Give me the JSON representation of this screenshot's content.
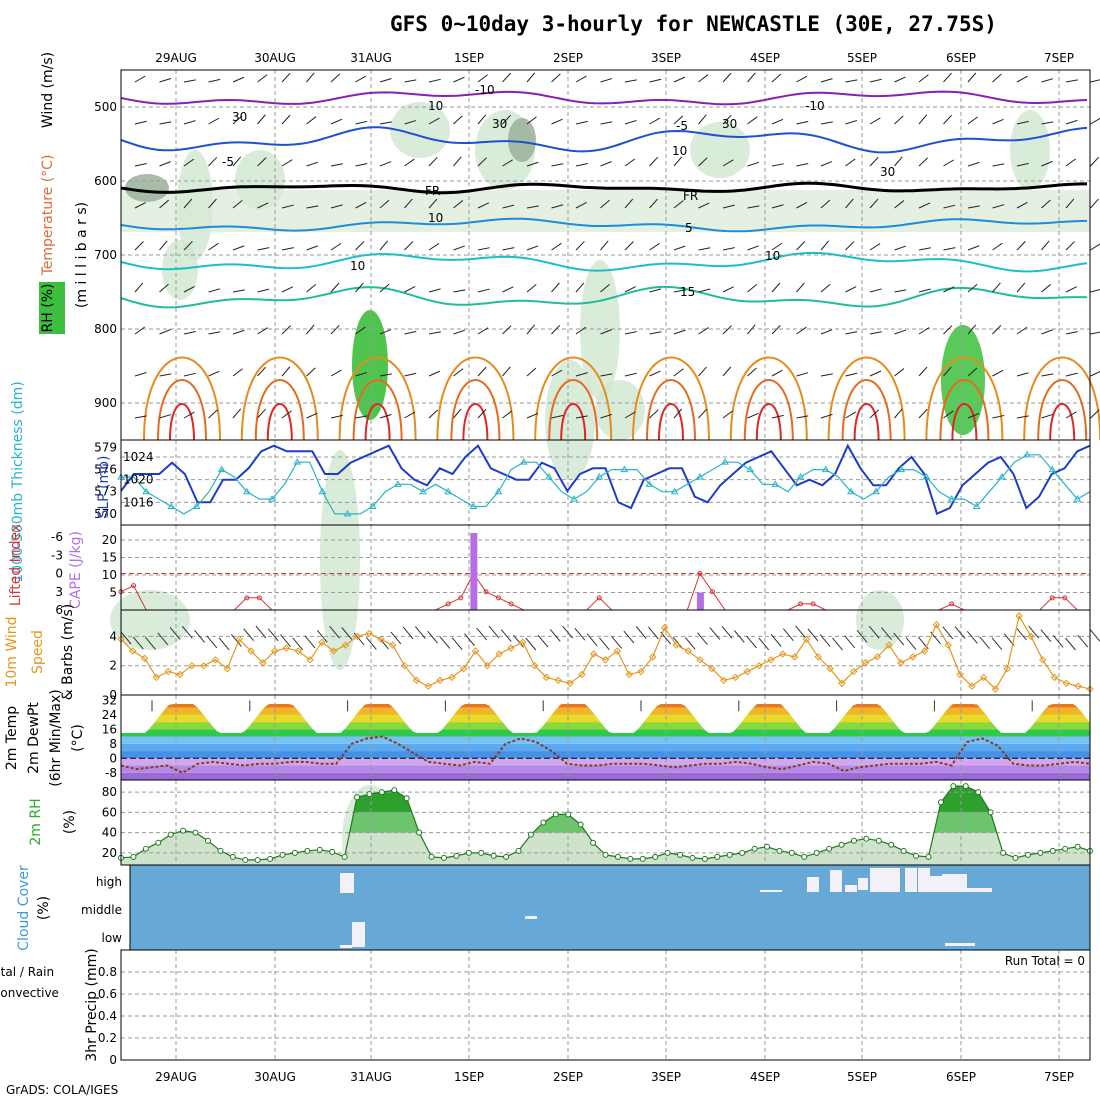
{
  "title": "GFS 0~10day 3-hourly for NEWCASTLE (30E, 27.75S)",
  "footer": "GrADS: COLA/IGES",
  "colors": {
    "rh_fill": "#3cbf3c",
    "contour_purple": "#8a1fb4",
    "contour_blue": "#1e50d2",
    "contour_cyan": "#1eaadc",
    "contour_teal": "#1ebe9b",
    "contour_orange": "#e68c1e",
    "slp": "#1e3cc8",
    "thickness": "#28b4c8",
    "lifted": "#dc3232",
    "cape": "#b46ee6",
    "wind": "#e6961e",
    "cloud_bg": "#66a8d6",
    "rhfill": "#2eaa2e"
  },
  "dates": [
    "29AUG",
    "30AUG",
    "31AUG",
    "1SEP",
    "2SEP",
    "3SEP",
    "4SEP",
    "5SEP",
    "6SEP",
    "7SEP"
  ],
  "chart_data": [
    {
      "type": "heatmap",
      "panel": "upper-air",
      "ylabel_parts": [
        "Wind (m/s)",
        "Temperature (°C)",
        "RH (%)",
        "(m i l l i b a r s)"
      ],
      "y_ticks": [
        500,
        600,
        700,
        800,
        900
      ],
      "ylim": [
        950,
        450
      ],
      "temperature_contour_labels": [
        "-10",
        "-10",
        "-5",
        "-5",
        "FR",
        "FR",
        "5",
        "10",
        "10",
        "15"
      ],
      "rh_contour_labels": [
        "10",
        "30",
        "30",
        "10",
        "30",
        "30",
        "10"
      ]
    },
    {
      "type": "line",
      "panel": "slp-thickness",
      "ylabel_left": "1000-500mb Thickness (dm)",
      "ylabel_right": "SLP (mb)",
      "left_ticks": [
        570,
        573,
        576,
        579
      ],
      "left_lim": [
        568.5,
        580
      ],
      "right_ticks": [
        1016,
        1020,
        1024
      ],
      "right_lim": [
        1012,
        1027
      ],
      "series": [
        {
          "name": "SLP",
          "values": [
            1018,
            1021,
            1021,
            1021,
            1023,
            1021,
            1016,
            1016,
            1020,
            1020,
            1022,
            1025,
            1026,
            1025,
            1025,
            1025,
            1021,
            1021,
            1023,
            1024,
            1025,
            1026,
            1022,
            1020,
            1019,
            1022,
            1021,
            1024,
            1026,
            1022,
            1021,
            1020,
            1020,
            1023,
            1022,
            1018,
            1021,
            1022,
            1022,
            1016,
            1015,
            1020,
            1021,
            1022,
            1022,
            1017,
            1016,
            1019,
            1021,
            1023,
            1024,
            1025,
            1022,
            1019,
            1020,
            1019,
            1021,
            1026,
            1022,
            1019,
            1019,
            1022,
            1024,
            1021,
            1014,
            1015,
            1019,
            1021,
            1023,
            1024,
            1021,
            1015,
            1017,
            1021,
            1022,
            1025,
            1026
          ]
        },
        {
          "name": "Thickness",
          "values": [
            575,
            575,
            573,
            572,
            571,
            570,
            571,
            573,
            576,
            575,
            573,
            572,
            572,
            574,
            577,
            577,
            573,
            570,
            570,
            570,
            571,
            573,
            574,
            574,
            573,
            574,
            573,
            572,
            571,
            571,
            573,
            576,
            577,
            577,
            575,
            573,
            572,
            573,
            575,
            576,
            576,
            576,
            574,
            573,
            573,
            574,
            575,
            576,
            577,
            577,
            576,
            574,
            574,
            573,
            575,
            576,
            576,
            575,
            573,
            572,
            573,
            575,
            576,
            576,
            575,
            573,
            572,
            572,
            571,
            573,
            575,
            577,
            578,
            578,
            576,
            574,
            572,
            573
          ]
        }
      ]
    },
    {
      "type": "bar",
      "panel": "cape-lifted",
      "ylabel_left": "Lifted Index",
      "ylabel_right": "CAPE (J/kg)",
      "left_ticks": [
        "-6",
        "-3",
        "0",
        "3",
        "6"
      ],
      "right_ticks": [
        5,
        10,
        15,
        20
      ],
      "lifted_index": [
        3,
        2,
        6,
        6,
        6,
        6,
        6,
        6,
        6,
        6,
        4,
        4,
        6,
        6,
        6,
        6,
        6,
        6,
        6,
        6,
        6,
        6,
        6,
        6,
        6,
        6,
        5,
        4,
        0,
        3,
        4,
        5,
        6,
        6,
        6,
        6,
        6,
        6,
        4,
        6,
        6,
        6,
        6,
        6,
        6,
        6,
        0,
        3,
        6,
        6,
        6,
        6,
        6,
        6,
        5,
        5,
        6,
        6,
        6,
        6,
        6,
        6,
        6,
        6,
        6,
        6,
        5,
        6,
        6,
        6,
        6,
        6,
        6,
        6,
        4,
        4,
        6,
        6
      ],
      "cape_bars": [
        {
          "x": 28,
          "value": 22
        },
        {
          "x": 46,
          "value": 5
        }
      ]
    },
    {
      "type": "line",
      "panel": "10m-wind",
      "ylabel": "10m Wind Speed & Barbs (m/s)",
      "y_ticks": [
        0,
        2,
        4
      ],
      "ylim": [
        0,
        5.8
      ],
      "series": [
        {
          "name": "Speed",
          "values": [
            3.8,
            3.0,
            2.5,
            1.2,
            1.6,
            1.4,
            2.0,
            2.0,
            2.4,
            1.8,
            3.8,
            3.0,
            2.2,
            3.0,
            3.2,
            3.0,
            2.4,
            3.6,
            3.0,
            3.4,
            4.0,
            4.2,
            3.8,
            3.4,
            2.0,
            1.0,
            0.6,
            1.0,
            1.2,
            1.8,
            3.0,
            2.0,
            2.8,
            3.2,
            3.6,
            2.0,
            1.2,
            1.0,
            0.8,
            1.4,
            2.8,
            2.4,
            3.0,
            1.4,
            1.6,
            2.6,
            4.6,
            3.4,
            3.0,
            2.4,
            1.8,
            1.0,
            1.2,
            1.6,
            2.0,
            2.4,
            2.8,
            2.6,
            3.8,
            2.6,
            1.8,
            0.8,
            1.6,
            2.2,
            2.6,
            3.4,
            2.2,
            2.6,
            3.0,
            4.8,
            3.4,
            1.4,
            0.6,
            1.2,
            0.4,
            1.8,
            5.4,
            4.0,
            2.4,
            1.2,
            0.8,
            0.6,
            0.4
          ]
        }
      ]
    },
    {
      "type": "area",
      "panel": "2m-temp",
      "ylabel": "2m Temp / 2m DewPt (6hr Min/Max) (°C)",
      "y_ticks": [
        -8,
        0,
        8,
        16,
        24,
        32
      ],
      "ylim": [
        -12,
        35
      ],
      "temp_min": 14,
      "temp_max": 30,
      "dewpoint": [
        -4,
        -6,
        -5,
        -4,
        -8,
        -3,
        -2,
        -3,
        -4,
        -3,
        -3,
        -2,
        -2,
        -3,
        -3,
        8,
        11,
        12,
        8,
        3,
        -2,
        -3,
        -4,
        -2,
        -3,
        8,
        11,
        9,
        4,
        -3,
        -4,
        -4,
        -3,
        -3,
        -3,
        -4,
        -5,
        -4,
        -3,
        -3,
        -2,
        -3,
        -5,
        -6,
        -4,
        -2,
        -3,
        -7,
        -5,
        -4,
        -3,
        -3,
        -3,
        -2,
        -4,
        9,
        11,
        7,
        -3,
        -4,
        -4,
        -3,
        -2,
        -3
      ]
    },
    {
      "type": "area",
      "panel": "2m-rh",
      "ylabel": "2m RH (%)",
      "y_ticks": [
        20,
        40,
        60,
        80
      ],
      "ylim": [
        8,
        92
      ],
      "series": [
        {
          "name": "2m RH",
          "values": [
            15,
            16,
            24,
            30,
            38,
            42,
            40,
            32,
            22,
            16,
            13,
            13,
            14,
            18,
            20,
            22,
            23,
            21,
            16,
            75,
            78,
            80,
            82,
            74,
            40,
            16,
            15,
            17,
            20,
            20,
            17,
            16,
            22,
            38,
            50,
            58,
            58,
            48,
            30,
            18,
            16,
            14,
            14,
            16,
            20,
            18,
            15,
            14,
            16,
            18,
            20,
            24,
            26,
            22,
            20,
            16,
            20,
            24,
            28,
            32,
            34,
            32,
            28,
            22,
            17,
            16,
            70,
            86,
            86,
            80,
            60,
            20,
            15,
            18,
            20,
            22,
            24,
            26,
            22
          ]
        }
      ]
    },
    {
      "type": "bar",
      "panel": "cloud-cover",
      "ylabel": "Cloud Cover (%)",
      "levels": [
        "high",
        "middle",
        "low"
      ],
      "run_label": "Run Total = 0"
    },
    {
      "type": "bar",
      "panel": "precip",
      "ylabel_parts": [
        "Total / Rain",
        "Convective",
        "3hr Precip (mm)"
      ],
      "y_ticks": [
        "0",
        "0.2",
        "0.4",
        "0.6",
        "0.8"
      ],
      "ylim": [
        0,
        1
      ]
    }
  ]
}
